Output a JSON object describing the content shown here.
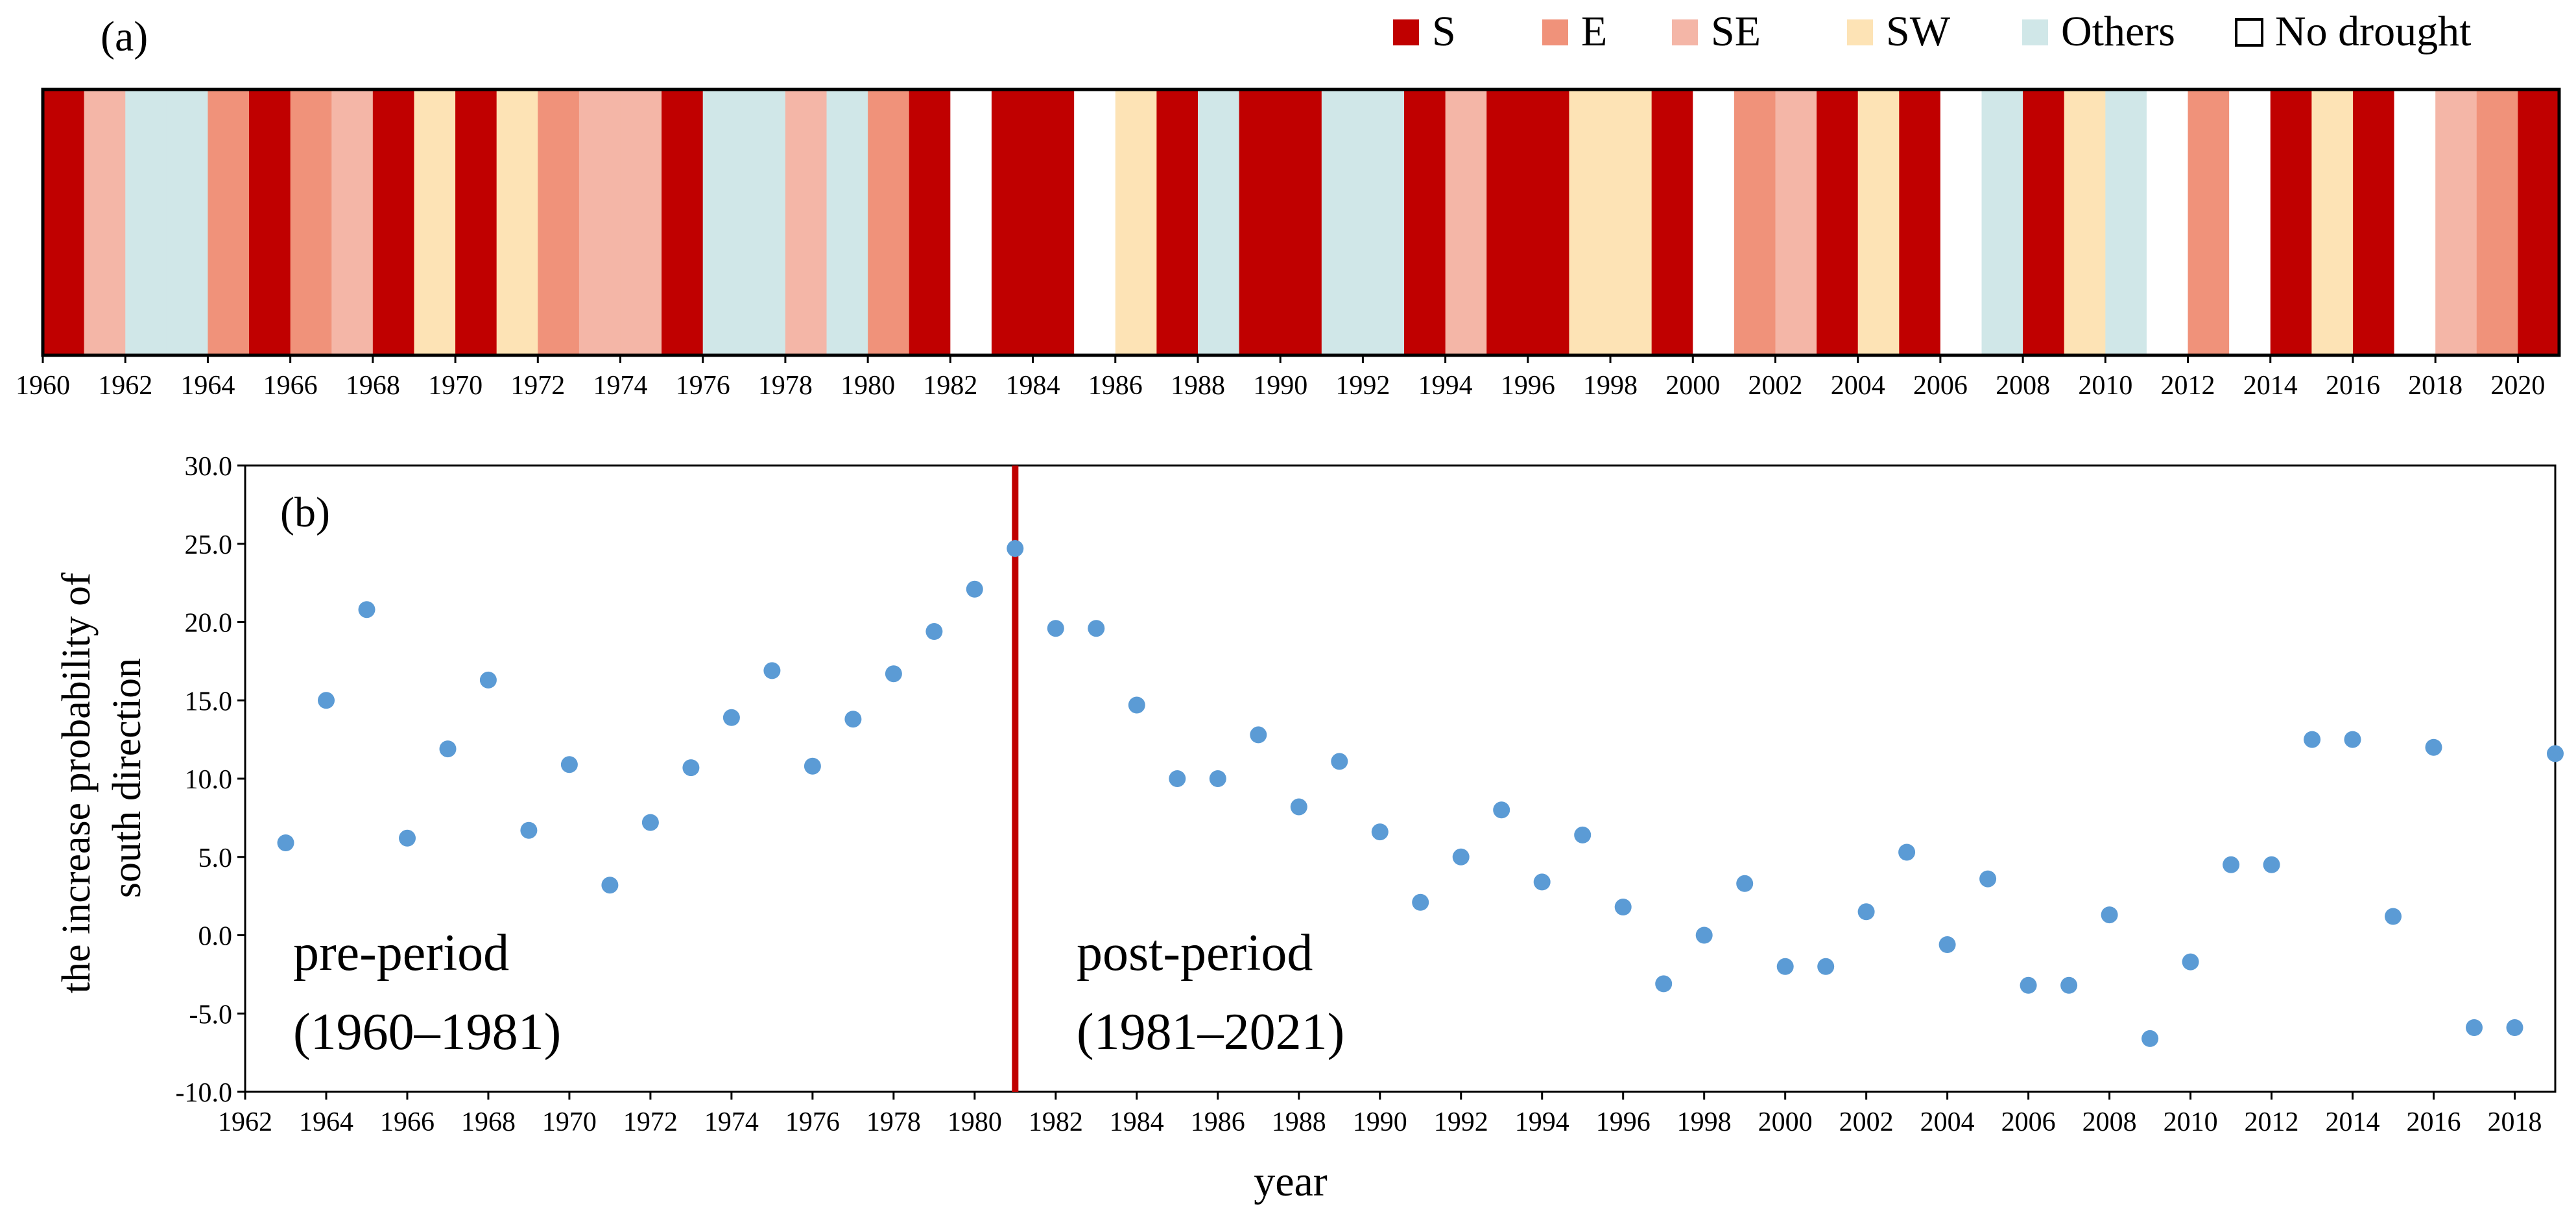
{
  "panel_a_label": "(a)",
  "panel_b_label": "(b)",
  "chart_data": [
    {
      "type": "bar",
      "subtype": "categorical-strip",
      "panel": "(a)",
      "description_key": "drought direction per year",
      "legend": [
        {
          "key": "S",
          "label": "S",
          "color": "#C00000"
        },
        {
          "key": "E",
          "label": "E",
          "color": "#F0927A"
        },
        {
          "key": "SE",
          "label": "SE",
          "color": "#F4B6A7"
        },
        {
          "key": "SW",
          "label": "SW",
          "color": "#FDE3B5"
        },
        {
          "key": "Others",
          "label": "Others",
          "color": "#D0E7E8"
        },
        {
          "key": "No drought",
          "label": "No drought",
          "color": "#FFFFFF"
        }
      ],
      "years": [
        1960,
        1961,
        1962,
        1963,
        1964,
        1965,
        1966,
        1967,
        1968,
        1969,
        1970,
        1971,
        1972,
        1973,
        1974,
        1975,
        1976,
        1977,
        1978,
        1979,
        1980,
        1981,
        1982,
        1983,
        1984,
        1985,
        1986,
        1987,
        1988,
        1989,
        1990,
        1991,
        1992,
        1993,
        1994,
        1995,
        1996,
        1997,
        1998,
        1999,
        2000,
        2001,
        2002,
        2003,
        2004,
        2005,
        2006,
        2007,
        2008,
        2009,
        2010,
        2011,
        2012,
        2013,
        2014,
        2015,
        2016,
        2017,
        2018,
        2019,
        2020
      ],
      "categories": [
        "S",
        "SE",
        "Others",
        "Others",
        "E",
        "S",
        "E",
        "SE",
        "S",
        "SW",
        "S",
        "SW",
        "E",
        "SE",
        "SE",
        "S",
        "Others",
        "Others",
        "SE",
        "Others",
        "E",
        "S",
        "No drought",
        "S",
        "S",
        "No drought",
        "SW",
        "S",
        "Others",
        "S",
        "S",
        "Others",
        "Others",
        "S",
        "SE",
        "S",
        "S",
        "SW",
        "SW",
        "S",
        "No drought",
        "E",
        "SE",
        "S",
        "SW",
        "S",
        "No drought",
        "Others",
        "S",
        "SW",
        "Others",
        "No drought",
        "E",
        "No drought",
        "S",
        "SW",
        "S",
        "No drought",
        "SE",
        "E",
        "S"
      ],
      "x_ticks": [
        "1960",
        "1962",
        "1964",
        "1966",
        "1968",
        "1970",
        "1972",
        "1974",
        "1976",
        "1978",
        "1980",
        "1982",
        "1984",
        "1986",
        "1988",
        "1990",
        "1992",
        "1994",
        "1996",
        "1998",
        "2000",
        "2002",
        "2004",
        "2006",
        "2008",
        "2010",
        "2012",
        "2014",
        "2016",
        "2018",
        "2020"
      ]
    },
    {
      "type": "scatter",
      "panel": "(b)",
      "xlabel": "year",
      "ylabel_lines": [
        "the increase probability of",
        "south direction"
      ],
      "xlim": [
        1962,
        2019
      ],
      "ylim": [
        -10,
        30
      ],
      "y_ticks": [
        "30.0",
        "25.0",
        "20.0",
        "15.0",
        "10.0",
        "5.0",
        "0.0",
        "-5.0",
        "-10.0"
      ],
      "x_ticks": [
        "1962",
        "1964",
        "1966",
        "1968",
        "1970",
        "1972",
        "1974",
        "1976",
        "1978",
        "1980",
        "1982",
        "1984",
        "1986",
        "1988",
        "1990",
        "1992",
        "1994",
        "1996",
        "1998",
        "2000",
        "2002",
        "2004",
        "2006",
        "2008",
        "2010",
        "2012",
        "2014",
        "2016",
        "2018"
      ],
      "point_color": "#5B9BD5",
      "split_line": {
        "x": 1981,
        "color": "#C00000"
      },
      "annotations": [
        {
          "key": "pre",
          "line1": "pre-period",
          "line2": "(1960–1981)"
        },
        {
          "key": "post",
          "line1": "post-period",
          "line2": "(1981–2021)"
        }
      ],
      "series": [
        {
          "name": "increase probability of south direction",
          "x": [
            1963,
            1964,
            1965,
            1966,
            1967,
            1968,
            1969,
            1970,
            1971,
            1972,
            1973,
            1974,
            1975,
            1976,
            1977,
            1978,
            1979,
            1980,
            1981,
            1982,
            1983,
            1984,
            1985,
            1986,
            1987,
            1988,
            1989,
            1990,
            1991,
            1992,
            1993,
            1994,
            1995,
            1996,
            1997,
            1998,
            1999,
            2000,
            2001,
            2002,
            2003,
            2004,
            2005,
            2006,
            2007,
            2008,
            2009,
            2010,
            2011,
            2012,
            2013,
            2014,
            2015,
            2016,
            2017,
            2018,
            2019
          ],
          "y": [
            5.9,
            15.0,
            20.8,
            6.2,
            11.9,
            16.3,
            6.7,
            10.9,
            3.2,
            7.2,
            10.7,
            13.9,
            16.9,
            10.8,
            13.8,
            16.7,
            19.4,
            22.1,
            24.7,
            19.6,
            19.6,
            14.7,
            10.0,
            10.0,
            12.8,
            8.2,
            11.1,
            6.6,
            2.1,
            5.0,
            8.0,
            3.4,
            6.4,
            1.8,
            -3.1,
            0.0,
            3.3,
            -2.0,
            -2.0,
            1.5,
            5.3,
            -0.6,
            3.6,
            -3.2,
            -3.2,
            1.3,
            -6.6,
            -1.7,
            4.5,
            4.5,
            12.5,
            12.5,
            1.2,
            12.0,
            -5.9,
            -5.9,
            11.6
          ]
        }
      ]
    }
  ]
}
